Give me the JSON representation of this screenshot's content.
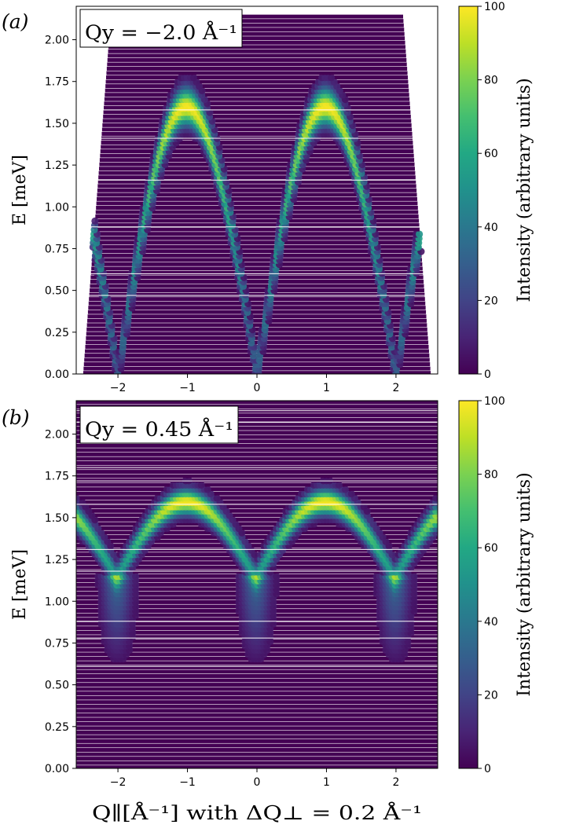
{
  "figure": {
    "xlabel": "Q∥[Å⁻¹] with ΔQ⊥ = 0.2 Å⁻¹",
    "ylabel": "E [meV]",
    "colorbar_label": "Intensity (arbitrary units)",
    "colorbar_ticks": [
      "0",
      "20",
      "40",
      "60",
      "80",
      "100"
    ]
  },
  "chart_data": [
    {
      "type": "heatmap",
      "panel_label": "(a)",
      "annotation": "Qy = −2.0 Å⁻¹",
      "xlabel": "",
      "ylabel": "E [meV]",
      "xlim": [
        -2.6,
        2.6
      ],
      "ylim": [
        0.0,
        2.2
      ],
      "x_ticks": [
        -2,
        -1,
        0,
        1,
        2
      ],
      "y_ticks": [
        0.0,
        0.25,
        0.5,
        0.75,
        1.0,
        1.25,
        1.5,
        1.75,
        2.0
      ],
      "x_tick_labels": [
        "−2",
        "−1",
        "0",
        "1",
        "2"
      ],
      "y_tick_labels": [
        "0.00",
        "0.25",
        "0.50",
        "0.75",
        "1.00",
        "1.25",
        "1.50",
        "1.75",
        "2.00"
      ],
      "coverage": {
        "bottom_x": [
          -2.5,
          2.5
        ],
        "top_x": [
          -2.1,
          2.1
        ],
        "top_e": 2.15
      },
      "dispersion": {
        "amplitude_meV": 1.6,
        "period": 2.0,
        "peak_q": [
          -1,
          1
        ],
        "min_q": [
          -2,
          0,
          2
        ],
        "max_intensity": 100
      },
      "colorbar": {
        "min": 0,
        "max": 100,
        "label": "Intensity (arbitrary units)"
      }
    },
    {
      "type": "heatmap",
      "panel_label": "(b)",
      "annotation": "Qy = 0.45 Å⁻¹",
      "xlabel": "Q∥[Å⁻¹] with ΔQ⊥ = 0.2 Å⁻¹",
      "ylabel": "E [meV]",
      "xlim": [
        -2.6,
        2.6
      ],
      "ylim": [
        0.0,
        2.2
      ],
      "x_ticks": [
        -2,
        -1,
        0,
        1,
        2
      ],
      "y_ticks": [
        0.0,
        0.25,
        0.5,
        0.75,
        1.0,
        1.25,
        1.5,
        1.75,
        2.0
      ],
      "x_tick_labels": [
        "−2",
        "−1",
        "0",
        "1",
        "2"
      ],
      "y_tick_labels": [
        "0.00",
        "0.25",
        "0.50",
        "0.75",
        "1.00",
        "1.25",
        "1.50",
        "1.75",
        "2.00"
      ],
      "coverage": {
        "bottom_x": [
          -2.6,
          2.6
        ],
        "top_x": [
          -2.6,
          2.6
        ],
        "top_e": 2.2
      },
      "dispersion": {
        "amplitude_meV": 1.6,
        "baseline_meV": 1.15,
        "period": 2.0,
        "peak_q": [
          -1,
          1
        ],
        "min_q": [
          -2,
          0,
          2
        ],
        "max_intensity": 100
      },
      "colorbar": {
        "min": 0,
        "max": 100,
        "label": "Intensity (arbitrary units)"
      }
    }
  ]
}
